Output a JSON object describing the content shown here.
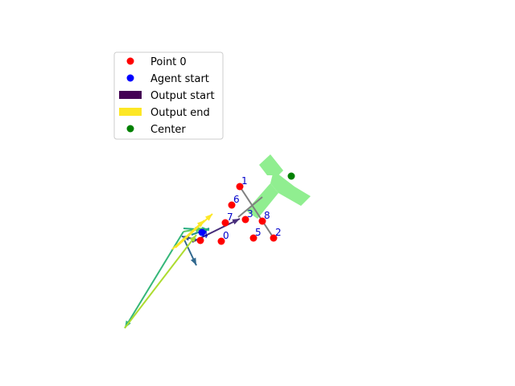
{
  "chart_data": {
    "type": "scatter",
    "title": "",
    "xlabel": "",
    "ylabel": "",
    "axes_visible": false,
    "grid": false,
    "legend_placement": "upper-left",
    "legend": [
      {
        "label": "Point 0",
        "marker": "circle",
        "color": "#ff0000"
      },
      {
        "label": "Agent start",
        "marker": "circle",
        "color": "#0000ff"
      },
      {
        "label": "Output start",
        "marker": "patch",
        "color": "#440154"
      },
      {
        "label": "Output end",
        "marker": "patch",
        "color": "#fde725"
      },
      {
        "label": "Center",
        "marker": "circle",
        "color": "#008000"
      }
    ],
    "xlim": [
      0,
      640
    ],
    "ylim": [
      480,
      0
    ],
    "points": [
      {
        "label": "0",
        "x": 275,
        "y": 300
      },
      {
        "label": "1",
        "x": 298,
        "y": 232
      },
      {
        "label": "2",
        "x": 340,
        "y": 296
      },
      {
        "label": "3",
        "x": 305,
        "y": 273
      },
      {
        "label": "4",
        "x": 249,
        "y": 299
      },
      {
        "label": "5",
        "x": 315,
        "y": 296
      },
      {
        "label": "6",
        "x": 288,
        "y": 255
      },
      {
        "label": "7",
        "x": 280,
        "y": 277
      },
      {
        "label": "8",
        "x": 326,
        "y": 275
      }
    ],
    "agent_start": {
      "x": 251,
      "y": 289
    },
    "center": {
      "x": 362,
      "y": 219
    },
    "target_shape": {
      "color": "#90ee90",
      "polygons": [
        [
          [
            322,
            205
          ],
          [
            336,
            192
          ],
          [
            352,
            212
          ],
          [
            346,
            218
          ],
          [
            332,
            218
          ]
        ],
        [
          [
            340,
            212
          ],
          [
            366,
            232
          ],
          [
            386,
            244
          ],
          [
            374,
            256
          ],
          [
            346,
            240
          ],
          [
            336,
            228
          ]
        ],
        [
          [
            336,
            228
          ],
          [
            346,
            240
          ],
          [
            320,
            272
          ],
          [
            306,
            262
          ]
        ]
      ]
    },
    "gray_path": [
      [
        298,
        232
      ],
      [
        340,
        296
      ]
    ],
    "gray_path2": [
      [
        296,
        270
      ],
      [
        326,
        245
      ]
    ],
    "outputs": [
      {
        "from": [
          239,
          301
        ],
        "to": [
          298,
          272
        ],
        "color": "#472d7b"
      },
      {
        "from": [
          249,
          299
        ],
        "to": [
          226,
          294
        ],
        "color": "#3b528b"
      },
      {
        "from": [
          228,
          296
        ],
        "to": [
          244,
          330
        ],
        "color": "#31688e"
      },
      {
        "from": [
          238,
          292
        ],
        "to": [
          260,
          284
        ],
        "color": "#21918c"
      },
      {
        "from": [
          228,
          284
        ],
        "to": [
          260,
          286
        ],
        "color": "#28ae80"
      },
      {
        "from": [
          228,
          288
        ],
        "to": [
          155,
          408
        ],
        "color": "#35b779"
      },
      {
        "from": [
          228,
          288
        ],
        "to": [
          252,
          284
        ],
        "color": "#5ec962"
      },
      {
        "from": [
          155,
          408
        ],
        "to": [
          244,
          292
        ],
        "color": "#addc30"
      },
      {
        "from": [
          218,
          308
        ],
        "to": [
          264,
          266
        ],
        "color": "#fde725"
      },
      {
        "from": [
          214,
          310
        ],
        "to": [
          254,
          274
        ],
        "color": "#fde725"
      }
    ]
  }
}
